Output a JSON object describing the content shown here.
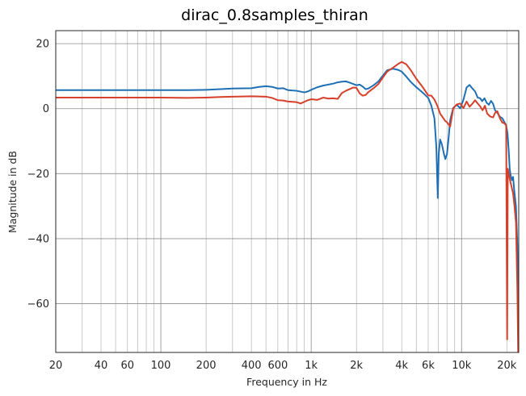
{
  "chart_data": {
    "type": "line",
    "title": "dirac_0.8samples_thiran",
    "xlabel": "Frequency in Hz",
    "ylabel": "Magnitude in dB",
    "xscale": "log",
    "xlim": [
      20,
      24000
    ],
    "ylim": [
      -75,
      24
    ],
    "grid": true,
    "x_ticks": [
      {
        "v": 20,
        "label": "20"
      },
      {
        "v": 40,
        "label": "40"
      },
      {
        "v": 60,
        "label": "60"
      },
      {
        "v": 100,
        "label": "100"
      },
      {
        "v": 200,
        "label": "200"
      },
      {
        "v": 400,
        "label": "400"
      },
      {
        "v": 600,
        "label": "600"
      },
      {
        "v": 1000,
        "label": "1k"
      },
      {
        "v": 2000,
        "label": "2k"
      },
      {
        "v": 4000,
        "label": "4k"
      },
      {
        "v": 6000,
        "label": "6k"
      },
      {
        "v": 10000,
        "label": "10k"
      },
      {
        "v": 20000,
        "label": "20k"
      }
    ],
    "y_ticks": [
      {
        "v": 20,
        "label": "20"
      },
      {
        "v": 0,
        "label": "0"
      },
      {
        "v": -20,
        "label": "−20"
      },
      {
        "v": -40,
        "label": "−40"
      },
      {
        "v": -60,
        "label": "−60"
      }
    ],
    "series": [
      {
        "color": "#1f6fb4",
        "points": [
          [
            20,
            5.7
          ],
          [
            50,
            5.7
          ],
          [
            100,
            5.7
          ],
          [
            150,
            5.7
          ],
          [
            200,
            5.8
          ],
          [
            250,
            6.0
          ],
          [
            300,
            6.2
          ],
          [
            400,
            6.3
          ],
          [
            450,
            6.7
          ],
          [
            500,
            6.9
          ],
          [
            550,
            6.7
          ],
          [
            600,
            6.2
          ],
          [
            650,
            6.3
          ],
          [
            700,
            5.7
          ],
          [
            800,
            5.5
          ],
          [
            900,
            5.0
          ],
          [
            950,
            5.3
          ],
          [
            1000,
            5.8
          ],
          [
            1100,
            6.6
          ],
          [
            1200,
            7.1
          ],
          [
            1300,
            7.4
          ],
          [
            1400,
            7.7
          ],
          [
            1500,
            8.1
          ],
          [
            1600,
            8.3
          ],
          [
            1700,
            8.4
          ],
          [
            1800,
            8.0
          ],
          [
            1900,
            7.6
          ],
          [
            2000,
            7.2
          ],
          [
            2100,
            7.4
          ],
          [
            2200,
            6.8
          ],
          [
            2300,
            6.0
          ],
          [
            2400,
            6.2
          ],
          [
            2600,
            7.2
          ],
          [
            2800,
            8.4
          ],
          [
            3000,
            10.2
          ],
          [
            3200,
            11.8
          ],
          [
            3500,
            12.3
          ],
          [
            3800,
            11.9
          ],
          [
            4000,
            11.4
          ],
          [
            4300,
            9.8
          ],
          [
            4600,
            8.2
          ],
          [
            5000,
            6.6
          ],
          [
            5500,
            5.0
          ],
          [
            6000,
            3.3
          ],
          [
            6300,
            0.9
          ],
          [
            6600,
            -3.0
          ],
          [
            6800,
            -12
          ],
          [
            6950,
            -27.5
          ],
          [
            7050,
            -14
          ],
          [
            7200,
            -9.5
          ],
          [
            7400,
            -11
          ],
          [
            7600,
            -13.5
          ],
          [
            7800,
            -15.5
          ],
          [
            8000,
            -14
          ],
          [
            8200,
            -9.0
          ],
          [
            8400,
            -3.5
          ],
          [
            8800,
            0.2
          ],
          [
            9300,
            1.2
          ],
          [
            9800,
            0.1
          ],
          [
            10300,
            2.8
          ],
          [
            10800,
            6.5
          ],
          [
            11300,
            7.3
          ],
          [
            11800,
            6.2
          ],
          [
            12300,
            5.3
          ],
          [
            12800,
            3.4
          ],
          [
            13300,
            3.2
          ],
          [
            13700,
            2.3
          ],
          [
            14200,
            3.2
          ],
          [
            14700,
            1.8
          ],
          [
            15200,
            1.2
          ],
          [
            15700,
            2.4
          ],
          [
            16200,
            1.5
          ],
          [
            16700,
            -0.5
          ],
          [
            17300,
            -1.3
          ],
          [
            18000,
            -2.5
          ],
          [
            18700,
            -3.0
          ],
          [
            19300,
            -4.2
          ],
          [
            19800,
            -5.0
          ],
          [
            20200,
            -7.5
          ],
          [
            20600,
            -13
          ],
          [
            20900,
            -18.5
          ],
          [
            21200,
            -20.5
          ],
          [
            21600,
            -22
          ],
          [
            22000,
            -21
          ],
          [
            22500,
            -26
          ],
          [
            23000,
            -30
          ],
          [
            23500,
            -42
          ],
          [
            24000,
            -75
          ]
        ]
      },
      {
        "color": "#d6402a",
        "points": [
          [
            20,
            3.4
          ],
          [
            50,
            3.4
          ],
          [
            100,
            3.4
          ],
          [
            150,
            3.3
          ],
          [
            200,
            3.4
          ],
          [
            250,
            3.6
          ],
          [
            300,
            3.7
          ],
          [
            400,
            3.8
          ],
          [
            500,
            3.7
          ],
          [
            550,
            3.3
          ],
          [
            600,
            2.6
          ],
          [
            650,
            2.5
          ],
          [
            700,
            2.2
          ],
          [
            800,
            2.0
          ],
          [
            850,
            1.6
          ],
          [
            950,
            2.6
          ],
          [
            1000,
            2.9
          ],
          [
            1100,
            2.7
          ],
          [
            1200,
            3.4
          ],
          [
            1300,
            3.1
          ],
          [
            1400,
            3.2
          ],
          [
            1500,
            3.0
          ],
          [
            1600,
            4.8
          ],
          [
            1700,
            5.5
          ],
          [
            1800,
            6.0
          ],
          [
            1900,
            6.5
          ],
          [
            2000,
            6.4
          ],
          [
            2100,
            4.7
          ],
          [
            2200,
            4.0
          ],
          [
            2300,
            4.2
          ],
          [
            2400,
            5.1
          ],
          [
            2600,
            6.3
          ],
          [
            2800,
            7.6
          ],
          [
            3000,
            9.6
          ],
          [
            3200,
            11.4
          ],
          [
            3500,
            12.6
          ],
          [
            3800,
            13.8
          ],
          [
            4000,
            14.4
          ],
          [
            4300,
            13.6
          ],
          [
            4600,
            11.8
          ],
          [
            5000,
            9.2
          ],
          [
            5500,
            6.7
          ],
          [
            6000,
            4.1
          ],
          [
            6300,
            4.0
          ],
          [
            6600,
            2.8
          ],
          [
            6900,
            0.9
          ],
          [
            7200,
            -1.5
          ],
          [
            7500,
            -2.7
          ],
          [
            7800,
            -3.8
          ],
          [
            8000,
            -4.2
          ],
          [
            8400,
            -5.5
          ],
          [
            8800,
            0.1
          ],
          [
            9300,
            1.3
          ],
          [
            9800,
            1.6
          ],
          [
            10300,
            0.2
          ],
          [
            10800,
            2.2
          ],
          [
            11300,
            0.6
          ],
          [
            11800,
            1.5
          ],
          [
            12300,
            2.6
          ],
          [
            12800,
            1.6
          ],
          [
            13300,
            0.7
          ],
          [
            13800,
            -0.5
          ],
          [
            14300,
            0.9
          ],
          [
            14800,
            -1.5
          ],
          [
            15500,
            -2.4
          ],
          [
            16200,
            -2.7
          ],
          [
            16700,
            -1.3
          ],
          [
            17300,
            -0.8
          ],
          [
            18000,
            -3.0
          ],
          [
            18700,
            -4.3
          ],
          [
            19300,
            -4.5
          ],
          [
            19800,
            -5.2
          ],
          [
            20100,
            -71
          ],
          [
            20300,
            -18.5
          ],
          [
            20600,
            -20
          ],
          [
            21000,
            -22
          ],
          [
            21500,
            -24
          ],
          [
            22000,
            -26
          ],
          [
            22500,
            -30
          ],
          [
            23000,
            -35
          ],
          [
            23500,
            -55
          ],
          [
            23800,
            -75
          ]
        ]
      }
    ]
  }
}
